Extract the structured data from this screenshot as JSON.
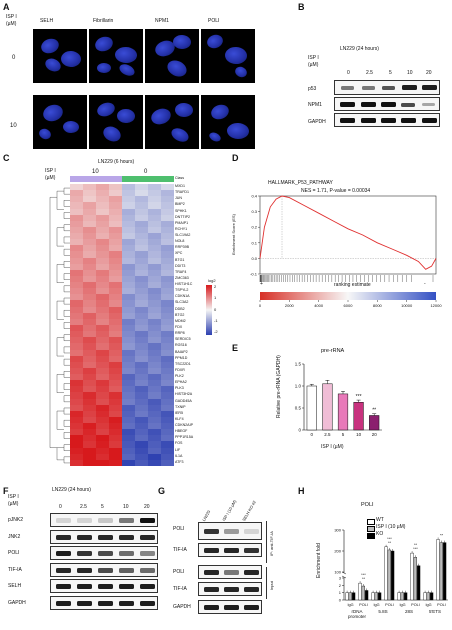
{
  "panels": {
    "A": "A",
    "B": "B",
    "C": "C",
    "D": "D",
    "E": "E",
    "F": "F",
    "G": "G",
    "H": "H"
  },
  "panelA": {
    "isp_label": "ISP I",
    "unit": "(µM)",
    "columns": [
      "SELH",
      "Fibrillarin",
      "NPM1",
      "POLI"
    ],
    "rows": [
      "0",
      "10"
    ]
  },
  "panelB": {
    "title": "LN229 (24 hours)",
    "isp_label": "ISP I",
    "unit": "(µM)",
    "doses": [
      "0",
      "2.5",
      "5",
      "10",
      "20"
    ],
    "blots": [
      "p53",
      "NPM1",
      "GAPDH"
    ]
  },
  "panelC": {
    "title": "LN229 (6 hours)",
    "isp_label": "ISP I",
    "unit": "(µM)",
    "groups": [
      "10",
      "0"
    ],
    "class_label": "Class",
    "genes": [
      "MXD1",
      "TRAFD1",
      "JUN",
      "BMP2",
      "SPHK1",
      "DNTTIP2",
      "PMAIP1",
      "RCHY1",
      "SLC19A2",
      "NOL8",
      "RRP39B",
      "XPC",
      "BTG1",
      "DDIT3",
      "TRAF4",
      "ZMC363",
      "HIST1H1C",
      "TSPYL2",
      "CDKN1A",
      "SLC3A2",
      "DDB2",
      "BTG2",
      "MDM2",
      "FDX",
      "RRP8",
      "SERDIC5",
      "RGS16",
      "BAIAP2",
      "PPM1D",
      "TSC22D1",
      "FDXR",
      "PLK2",
      "EPHA2",
      "PLK3",
      "HIST3H2A",
      "GADD45A",
      "TXNIP",
      "IER5",
      "KLF4",
      "CDKN2AIP",
      "HBEGF",
      "PPP1R15A",
      "FOS",
      "LIF",
      "IL1A",
      "ATF3"
    ],
    "legend_title": "log2",
    "legend_ticks": [
      "2",
      "1",
      "0",
      "-1",
      "-2"
    ],
    "high_color": "#d7191c",
    "low_color": "#2c3fb0",
    "class_colors": [
      "#b9a6e8",
      "#4ebf6e"
    ]
  },
  "panelD": {
    "title": "HALLMARK_P53_PATHWAY",
    "stats": "NES = 1.71, P-value = 0.00034",
    "ylabel": "Enrichment Score (ES)",
    "ranking_label": "ranking estimate",
    "plus": "+",
    "minus": "-"
  },
  "panelE": {
    "title": "pre-rRNA",
    "ylabel": "Relative pre-rRNA (GAPDH)",
    "xlabel": "ISP I (µM)",
    "sig": [
      "***",
      "**"
    ]
  },
  "panelF": {
    "title": "LN229 (24 hours)",
    "isp_label": "ISP I",
    "unit": "(µM)",
    "doses": [
      "0",
      "2.5",
      "5",
      "10",
      "20"
    ],
    "blots": [
      "pJNK2",
      "JNK2",
      "POLI",
      "TIF-IA",
      "SELH",
      "GAPDH"
    ]
  },
  "panelG": {
    "lanes": [
      "LN229",
      "ISP I (10 µM)",
      "SELH KO #2"
    ],
    "blots": [
      "POLI",
      "TIF-IA",
      "POLI",
      "TIF-IA",
      "GAPDH"
    ],
    "ip_label": "IP: anti-TIF-IA",
    "input_label": "Input"
  },
  "panelH": {
    "title": "POLI",
    "ylabel": "Enrichment fold",
    "legend": [
      "WT",
      "ISP I (10 µM)",
      "KO"
    ],
    "groups": [
      "rDNA promoter",
      "5.8S",
      "28S",
      "5'ETS"
    ],
    "group_lines": [
      [
        "rDNA",
        "promoter"
      ],
      [
        "5.8S"
      ],
      [
        "28S"
      ],
      [
        "5'ETS"
      ]
    ],
    "subs": [
      "IgG",
      "POLI"
    ],
    "yticks": [
      "0",
      "1",
      "2",
      "3",
      "100",
      "200",
      "300"
    ],
    "sig": [
      "**",
      "***",
      "**",
      "***",
      "***",
      "**",
      "**"
    ]
  },
  "chart_data": [
    {
      "type": "bar",
      "title": "pre-rRNA",
      "xlabel": "ISP I (µM)",
      "ylabel": "Relative pre-rRNA (GAPDH)",
      "categories": [
        "0",
        "2.5",
        "5",
        "10",
        "20"
      ],
      "values": [
        1.0,
        1.05,
        0.82,
        0.63,
        0.33
      ],
      "errors": [
        0.04,
        0.08,
        0.06,
        0.05,
        0.04
      ],
      "colors": [
        "#ffffff",
        "#f0bdd6",
        "#e879b9",
        "#c8327e",
        "#8b1f6e"
      ],
      "ylim": [
        0,
        1.5
      ],
      "yticks": [
        "0",
        "0.5",
        "1.0",
        "1.5"
      ]
    },
    {
      "type": "line",
      "title": "HALLMARK_P53_PATHWAY",
      "ylabel": "Enrichment Score (ES)",
      "ylim": [
        -0.1,
        0.4
      ],
      "xlim": [
        0,
        12000
      ],
      "yticks": [
        "0.4",
        "0.3",
        "0.2",
        "0.1",
        "0.0",
        "-0.1"
      ],
      "xticks": [
        "0",
        "2000",
        "4000",
        "6000",
        "8000",
        "10000",
        "12000"
      ],
      "x": [
        0,
        300,
        700,
        1100,
        1500,
        2000,
        3000,
        4000,
        5000,
        6000,
        7000,
        8000,
        9000,
        10000,
        10800,
        11300,
        11700,
        12000
      ],
      "y": [
        0.0,
        0.2,
        0.33,
        0.38,
        0.4,
        0.39,
        0.34,
        0.29,
        0.24,
        0.19,
        0.15,
        0.1,
        0.06,
        0.02,
        -0.02,
        -0.07,
        -0.05,
        0.0
      ]
    },
    {
      "type": "bar",
      "title": "POLI",
      "ylabel": "Enrichment fold",
      "categories": [
        "rDNA promoter IgG",
        "rDNA promoter POLI",
        "5.8S IgG",
        "5.8S POLI",
        "28S IgG",
        "28S POLI",
        "5'ETS IgG",
        "5'ETS POLI"
      ],
      "series": [
        {
          "name": "WT",
          "values": [
            1.0,
            2.3,
            1.0,
            220,
            1.0,
            190,
            1.0,
            255
          ]
        },
        {
          "name": "ISP I (10 µM)",
          "values": [
            1.0,
            1.9,
            1.0,
            205,
            1.0,
            170,
            1.0,
            240
          ]
        },
        {
          "name": "KO",
          "values": [
            1.0,
            1.3,
            1.0,
            200,
            1.0,
            130,
            1.0,
            240
          ]
        }
      ],
      "colors": [
        "#ffffff",
        "#bdbdbd",
        "#000000"
      ]
    }
  ]
}
